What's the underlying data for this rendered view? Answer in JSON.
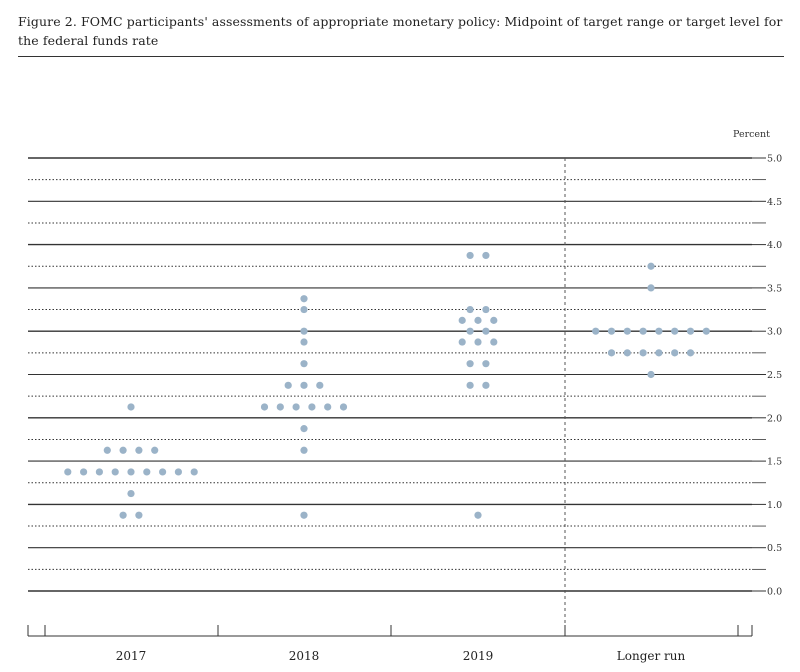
{
  "caption": "Figure 2. FOMC participants' assessments of appropriate monetary policy: Midpoint of target range or target level for the federal funds rate",
  "chart_data": {
    "type": "scatter",
    "ylabel": "Percent",
    "ylim": [
      0,
      5
    ],
    "y_ticks": [
      "5.0",
      "4.5",
      "4.0",
      "3.5",
      "3.0",
      "2.5",
      "2.0",
      "1.5",
      "1.0",
      "0.5",
      "0.0"
    ],
    "categories": [
      "2017",
      "2018",
      "2019",
      "Longer run"
    ],
    "dot_color": "#9bb3c8",
    "grid": "solid lines at whole and half percent, dotted lines at quarter steps",
    "groups": [
      {
        "category": "2017",
        "rows": [
          {
            "y": 2.125,
            "count": 1
          },
          {
            "y": 1.625,
            "count": 4
          },
          {
            "y": 1.375,
            "count": 9
          },
          {
            "y": 1.125,
            "count": 1
          },
          {
            "y": 0.875,
            "count": 2
          }
        ]
      },
      {
        "category": "2018",
        "rows": [
          {
            "y": 3.375,
            "count": 1
          },
          {
            "y": 3.25,
            "count": 1
          },
          {
            "y": 3.0,
            "count": 1
          },
          {
            "y": 2.875,
            "count": 1
          },
          {
            "y": 2.625,
            "count": 1
          },
          {
            "y": 2.375,
            "count": 3
          },
          {
            "y": 2.125,
            "count": 6
          },
          {
            "y": 1.875,
            "count": 1
          },
          {
            "y": 1.625,
            "count": 1
          },
          {
            "y": 0.875,
            "count": 1
          }
        ]
      },
      {
        "category": "2019",
        "rows": [
          {
            "y": 3.875,
            "count": 2
          },
          {
            "y": 3.25,
            "count": 2
          },
          {
            "y": 3.125,
            "count": 3
          },
          {
            "y": 3.0,
            "count": 2
          },
          {
            "y": 2.875,
            "count": 3
          },
          {
            "y": 2.625,
            "count": 2
          },
          {
            "y": 2.375,
            "count": 2
          },
          {
            "y": 0.875,
            "count": 1
          }
        ]
      },
      {
        "category": "Longer run",
        "rows": [
          {
            "y": 3.75,
            "count": 1
          },
          {
            "y": 3.5,
            "count": 1
          },
          {
            "y": 3.0,
            "count": 8
          },
          {
            "y": 2.75,
            "count": 6
          },
          {
            "y": 2.5,
            "count": 1
          }
        ]
      }
    ]
  }
}
